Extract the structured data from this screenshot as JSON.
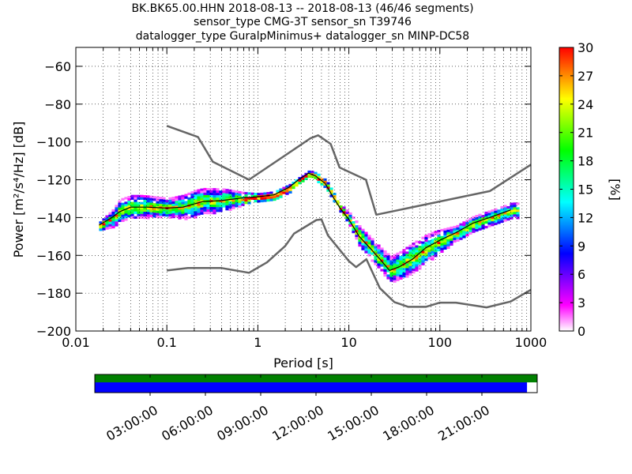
{
  "title_lines": [
    "BK.BK65.00.HHN   2018-08-13 -- 2018-08-13  (46/46 segments)",
    "sensor_type CMG-3T sensor_sn T39746",
    "datalogger_type GuralpMinimus+ datalogger_sn MINP-DC58"
  ],
  "chart_data": {
    "type": "heatmap",
    "xlabel": "Period [s]",
    "ylabel": "Power [m²/s⁴/Hz] [dB]",
    "xscale": "log",
    "xlim": [
      0.01,
      1000
    ],
    "ylim": [
      -200,
      -50
    ],
    "xticks": [
      {
        "value": 0.01,
        "label": "0.01"
      },
      {
        "value": 0.1,
        "label": "0.1"
      },
      {
        "value": 1,
        "label": "1"
      },
      {
        "value": 10,
        "label": "10"
      },
      {
        "value": 100,
        "label": "100"
      },
      {
        "value": 1000,
        "label": "1000"
      }
    ],
    "yticks": [
      -60,
      -80,
      -100,
      -120,
      -140,
      -160,
      -180,
      -200
    ],
    "grid": true,
    "colorbar": {
      "label": "[%]",
      "min": 0,
      "max": 30,
      "ticks": [
        0,
        3,
        6,
        9,
        12,
        15,
        18,
        21,
        24,
        27,
        30
      ],
      "colormap": [
        "#ffffff",
        "#ff00ff",
        "#8000ff",
        "#0000ff",
        "#0080ff",
        "#00ffff",
        "#00ff80",
        "#00ff00",
        "#80ff00",
        "#ffff00",
        "#ff8000",
        "#ff0000"
      ]
    },
    "series": [
      {
        "role": "noise-model-high",
        "color": "#666666",
        "points": [
          [
            0.1,
            -91.5
          ],
          [
            0.22,
            -97.4
          ],
          [
            0.32,
            -110.5
          ],
          [
            0.8,
            -120
          ],
          [
            3.8,
            -98
          ],
          [
            4.6,
            -96.5
          ],
          [
            6.3,
            -101
          ],
          [
            7.9,
            -113.5
          ],
          [
            15.4,
            -120
          ],
          [
            20,
            -138.5
          ],
          [
            354,
            -126
          ],
          [
            1000,
            -112
          ]
        ]
      },
      {
        "role": "noise-model-low",
        "color": "#666666",
        "points": [
          [
            0.1,
            -168
          ],
          [
            0.17,
            -166.7
          ],
          [
            0.4,
            -166.7
          ],
          [
            0.8,
            -169.2
          ],
          [
            1.26,
            -163.7
          ],
          [
            2,
            -155
          ],
          [
            2.5,
            -148.5
          ],
          [
            4.4,
            -141.3
          ],
          [
            5,
            -141
          ],
          [
            5.9,
            -149.5
          ],
          [
            10,
            -163
          ],
          [
            12,
            -166.2
          ],
          [
            15.6,
            -162
          ],
          [
            21.9,
            -177.3
          ],
          [
            31.6,
            -184.7
          ],
          [
            45,
            -187.2
          ],
          [
            70,
            -187.2
          ],
          [
            100,
            -185
          ],
          [
            150,
            -185
          ],
          [
            326,
            -187.5
          ],
          [
            600,
            -184.4
          ],
          [
            1000,
            -178.2
          ]
        ]
      },
      {
        "role": "psd-mode",
        "color": "#000000",
        "points": [
          [
            0.018,
            -144
          ],
          [
            0.025,
            -140
          ],
          [
            0.03,
            -137
          ],
          [
            0.04,
            -134.5
          ],
          [
            0.06,
            -134.5
          ],
          [
            0.1,
            -135
          ],
          [
            0.15,
            -134.5
          ],
          [
            0.25,
            -131.5
          ],
          [
            0.4,
            -131
          ],
          [
            0.7,
            -129.5
          ],
          [
            1,
            -129
          ],
          [
            1.5,
            -128
          ],
          [
            2.2,
            -124
          ],
          [
            2.8,
            -120
          ],
          [
            3.6,
            -116.5
          ],
          [
            4.3,
            -118
          ],
          [
            5.5,
            -122
          ],
          [
            6.5,
            -128
          ],
          [
            8,
            -135
          ],
          [
            10,
            -141
          ],
          [
            13,
            -150
          ],
          [
            17,
            -156
          ],
          [
            22,
            -162
          ],
          [
            28,
            -168
          ],
          [
            36,
            -166
          ],
          [
            50,
            -162
          ],
          [
            70,
            -156
          ],
          [
            100,
            -152
          ],
          [
            150,
            -148
          ],
          [
            230,
            -143
          ],
          [
            350,
            -140
          ],
          [
            600,
            -136
          ]
        ]
      }
    ],
    "density_band": {
      "note": "Probabilistic PSD histogram band around the mode curve",
      "center": [
        [
          0.018,
          -144
        ],
        [
          0.025,
          -140
        ],
        [
          0.03,
          -136
        ],
        [
          0.04,
          -134
        ],
        [
          0.06,
          -134
        ],
        [
          0.1,
          -134.5
        ],
        [
          0.15,
          -134
        ],
        [
          0.25,
          -131
        ],
        [
          0.4,
          -130.5
        ],
        [
          0.7,
          -129.5
        ],
        [
          1,
          -129
        ],
        [
          1.5,
          -128
        ],
        [
          2.2,
          -124
        ],
        [
          2.8,
          -120
        ],
        [
          3.6,
          -116.5
        ],
        [
          4.3,
          -118
        ],
        [
          5.5,
          -122
        ],
        [
          6.5,
          -128
        ],
        [
          8,
          -135
        ],
        [
          10,
          -141
        ],
        [
          13,
          -150
        ],
        [
          17,
          -156
        ],
        [
          22,
          -162
        ],
        [
          28,
          -167
        ],
        [
          36,
          -165
        ],
        [
          50,
          -161
        ],
        [
          70,
          -156
        ],
        [
          100,
          -152
        ],
        [
          150,
          -148
        ],
        [
          230,
          -143
        ],
        [
          350,
          -140
        ],
        [
          600,
          -136
        ]
      ],
      "half_width": [
        [
          0.018,
          2
        ],
        [
          0.03,
          6
        ],
        [
          0.05,
          6
        ],
        [
          0.1,
          5
        ],
        [
          0.2,
          7
        ],
        [
          0.4,
          6
        ],
        [
          0.7,
          3
        ],
        [
          1,
          2
        ],
        [
          2,
          2
        ],
        [
          3,
          1.5
        ],
        [
          5,
          2
        ],
        [
          8,
          2
        ],
        [
          12,
          5
        ],
        [
          20,
          6
        ],
        [
          30,
          7
        ],
        [
          50,
          8
        ],
        [
          80,
          7
        ],
        [
          150,
          4
        ],
        [
          300,
          4
        ],
        [
          600,
          4
        ]
      ]
    }
  },
  "time_axis": {
    "tick_labels": [
      "03:00:00",
      "06:00:00",
      "09:00:00",
      "12:00:00",
      "15:00:00",
      "18:00:00",
      "21:00:00"
    ],
    "span_hours": 24,
    "coverage_fraction": 0.977,
    "data_color": "#0000ff",
    "segment_color": "#008000"
  }
}
